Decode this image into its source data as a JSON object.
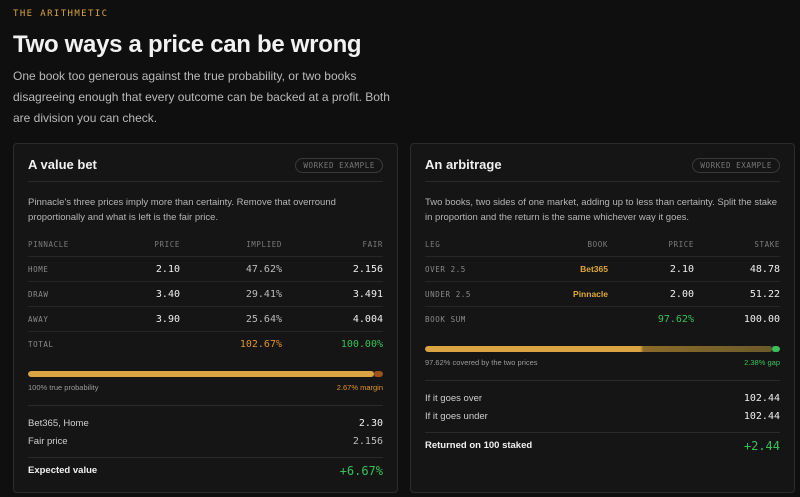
{
  "eyebrow": "THE ARITHMETIC",
  "title": "Two ways a price can be wrong",
  "intro": "One book too generous against the true probability, or two books disagreeing enough that every outcome can be backed at a profit. Both are division you can check.",
  "colors": {
    "accent": "#d9a441",
    "green": "#38c15a",
    "orange": "#e0932f",
    "background": "#0f0f0f"
  },
  "value_bet": {
    "title": "A value bet",
    "badge": "WORKED EXAMPLE",
    "description": "Pinnacle's three prices imply more than certainty. Remove that overround proportionally and what is left is the fair price.",
    "headers": [
      "PINNACLE",
      "PRICE",
      "IMPLIED",
      "FAIR"
    ],
    "rows": [
      {
        "label": "HOME",
        "price": "2.10",
        "implied": "47.62%",
        "fair": "2.156"
      },
      {
        "label": "DRAW",
        "price": "3.40",
        "implied": "29.41%",
        "fair": "3.491"
      },
      {
        "label": "AWAY",
        "price": "3.90",
        "implied": "25.64%",
        "fair": "4.004"
      }
    ],
    "total": {
      "label": "TOTAL",
      "implied": "102.67%",
      "fair": "100.00%"
    },
    "bar": {
      "true_fraction": 0.974,
      "left_caption": "100% true probability",
      "right_caption": "2.67% margin"
    },
    "summary": [
      {
        "label": "Bet365, Home",
        "value": "2.30"
      },
      {
        "label": "Fair price",
        "value": "2.156"
      }
    ],
    "result": {
      "label": "Expected value",
      "value": "+6.67%"
    }
  },
  "arbitrage": {
    "title": "An arbitrage",
    "badge": "WORKED EXAMPLE",
    "description": "Two books, two sides of one market, adding up to less than certainty. Split the stake in proportion and the return is the same whichever way it goes.",
    "headers": [
      "LEG",
      "BOOK",
      "PRICE",
      "STAKE"
    ],
    "rows": [
      {
        "label": "OVER 2.5",
        "book": "Bet365",
        "price": "2.10",
        "stake": "48.78"
      },
      {
        "label": "UNDER 2.5",
        "book": "Pinnacle",
        "price": "2.00",
        "stake": "51.22"
      }
    ],
    "sum": {
      "label": "BOOK SUM",
      "price": "97.62%",
      "stake": "100.00"
    },
    "bar": {
      "covered_fraction": 0.9762,
      "left_caption": "97.62% covered by the two prices",
      "right_caption": "2.38% gap"
    },
    "outcomes": [
      {
        "label": "If it goes over",
        "value": "102.44"
      },
      {
        "label": "If it goes under",
        "value": "102.44"
      }
    ],
    "result": {
      "label": "Returned on 100 staked",
      "value": "+2.44"
    }
  }
}
